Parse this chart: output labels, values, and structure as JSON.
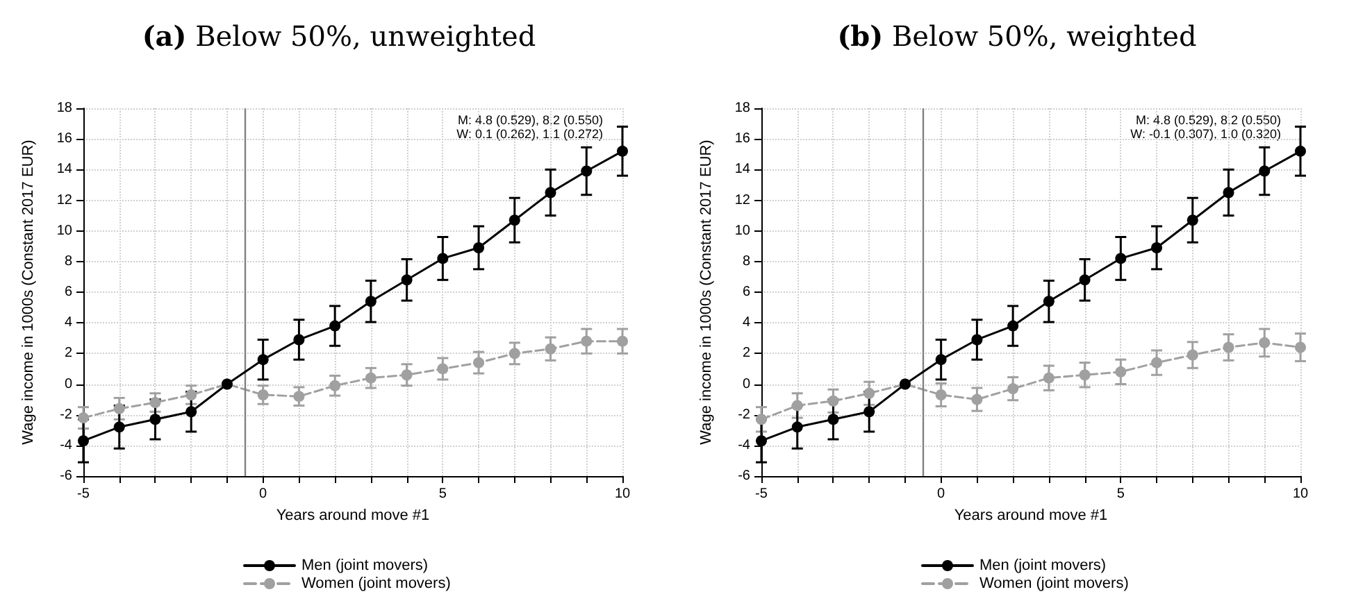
{
  "chart_data": [
    {
      "type": "line",
      "title": "(a) Below 50%, unweighted",
      "xlabel": "Years around move #1",
      "ylabel": "Wage income in 1000s (Constant 2017 EUR)",
      "x": [
        -5,
        -4,
        -3,
        -2,
        -1,
        0,
        1,
        2,
        3,
        4,
        5,
        6,
        7,
        8,
        9,
        10
      ],
      "series": [
        {
          "name": "Men (joint movers)",
          "color": "#000000",
          "line_style": "solid",
          "values": [
            -3.7,
            -2.8,
            -2.3,
            -1.8,
            0,
            1.6,
            2.9,
            3.8,
            5.4,
            6.8,
            8.2,
            8.9,
            10.7,
            12.5,
            13.9,
            15.2
          ],
          "errors": [
            1.4,
            1.4,
            1.3,
            1.3,
            null,
            1.3,
            1.3,
            1.3,
            1.35,
            1.35,
            1.4,
            1.4,
            1.45,
            1.5,
            1.55,
            1.6
          ]
        },
        {
          "name": "Women (joint movers)",
          "color": "#a0a0a0",
          "line_style": "dashed",
          "values": [
            -2.2,
            -1.6,
            -1.2,
            -0.7,
            0,
            -0.7,
            -0.8,
            -0.1,
            0.4,
            0.6,
            1.0,
            1.4,
            2.0,
            2.3,
            2.8,
            2.8
          ],
          "errors": [
            0.7,
            0.7,
            0.6,
            0.6,
            null,
            0.6,
            0.6,
            0.65,
            0.65,
            0.7,
            0.7,
            0.7,
            0.7,
            0.75,
            0.8,
            0.8
          ]
        }
      ],
      "xlim": [
        -5,
        10
      ],
      "xticks": [
        -5,
        {
          "value": -4,
          "label": null
        },
        {
          "value": -3,
          "label": null
        },
        {
          "value": -2,
          "label": null
        },
        {
          "value": -1,
          "label": null
        },
        0,
        {
          "value": 1,
          "label": null
        },
        {
          "value": 2,
          "label": null
        },
        {
          "value": 3,
          "label": null
        },
        {
          "value": 4,
          "label": null
        },
        5,
        {
          "value": 6,
          "label": null
        },
        {
          "value": 7,
          "label": null
        },
        {
          "value": 8,
          "label": null
        },
        {
          "value": 9,
          "label": null
        },
        10
      ],
      "ylim": [
        -6,
        18
      ],
      "yticks": [
        -6,
        -4,
        -2,
        0,
        2,
        4,
        6,
        8,
        10,
        12,
        14,
        16,
        18
      ],
      "ref_lines": [
        {
          "axis": "x",
          "value": -0.5,
          "color": "#808080"
        }
      ],
      "annotations": [
        "M: 4.8 (0.529), 8.2 (0.550)",
        "W: 0.1 (0.262), 1.1 (0.272)"
      ],
      "grid": true,
      "legend": "bottom",
      "marker": "circle"
    },
    {
      "type": "line",
      "title": "(b) Below 50%, weighted",
      "xlabel": "Years around move #1",
      "ylabel": "Wage income in 1000s (Constant 2017 EUR)",
      "x": [
        -5,
        -4,
        -3,
        -2,
        -1,
        0,
        1,
        2,
        3,
        4,
        5,
        6,
        7,
        8,
        9,
        10
      ],
      "series": [
        {
          "name": "Men (joint movers)",
          "color": "#000000",
          "line_style": "solid",
          "values": [
            -3.7,
            -2.8,
            -2.3,
            -1.8,
            0,
            1.6,
            2.9,
            3.8,
            5.4,
            6.8,
            8.2,
            8.9,
            10.7,
            12.5,
            13.9,
            15.2
          ],
          "errors": [
            1.4,
            1.4,
            1.3,
            1.3,
            null,
            1.3,
            1.3,
            1.3,
            1.35,
            1.35,
            1.4,
            1.4,
            1.45,
            1.5,
            1.55,
            1.6
          ]
        },
        {
          "name": "Women (joint movers)",
          "color": "#a0a0a0",
          "line_style": "dashed",
          "values": [
            -2.3,
            -1.4,
            -1.1,
            -0.6,
            0,
            -0.7,
            -1.0,
            -0.3,
            0.4,
            0.6,
            0.8,
            1.4,
            1.9,
            2.4,
            2.7,
            2.4
          ],
          "errors": [
            0.8,
            0.8,
            0.75,
            0.75,
            null,
            0.75,
            0.75,
            0.75,
            0.8,
            0.8,
            0.8,
            0.8,
            0.85,
            0.85,
            0.9,
            0.9
          ]
        }
      ],
      "xlim": [
        -5,
        10
      ],
      "xticks": [
        -5,
        {
          "value": -4,
          "label": null
        },
        {
          "value": -3,
          "label": null
        },
        {
          "value": -2,
          "label": null
        },
        {
          "value": -1,
          "label": null
        },
        0,
        {
          "value": 1,
          "label": null
        },
        {
          "value": 2,
          "label": null
        },
        {
          "value": 3,
          "label": null
        },
        {
          "value": 4,
          "label": null
        },
        5,
        {
          "value": 6,
          "label": null
        },
        {
          "value": 7,
          "label": null
        },
        {
          "value": 8,
          "label": null
        },
        {
          "value": 9,
          "label": null
        },
        10
      ],
      "ylim": [
        -6,
        18
      ],
      "yticks": [
        -6,
        -4,
        -2,
        0,
        2,
        4,
        6,
        8,
        10,
        12,
        14,
        16,
        18
      ],
      "ref_lines": [
        {
          "axis": "x",
          "value": -0.5,
          "color": "#808080"
        }
      ],
      "annotations": [
        "M: 4.8 (0.529), 8.2 (0.550)",
        "W: -0.1 (0.307), 1.0 (0.320)"
      ],
      "grid": true,
      "legend": "bottom",
      "marker": "circle"
    }
  ]
}
